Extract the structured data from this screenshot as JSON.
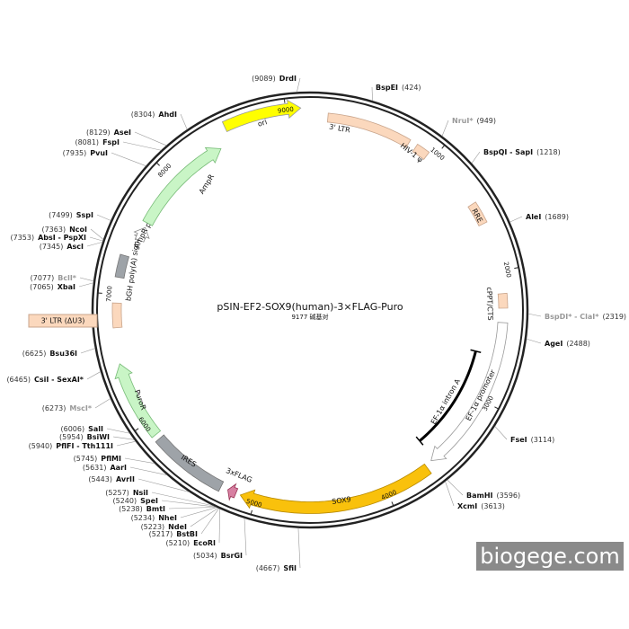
{
  "title": "pSIN-EF2-SOX9(human)-3×FLAG-Puro",
  "subtitle": "9177 碱基对",
  "ticks": [
    1000,
    2000,
    3000,
    4000,
    5000,
    6000,
    7000,
    8000,
    9000
  ],
  "features": [
    "ori",
    "3' LTR",
    "HIV-1 ψ",
    "RRE",
    "cPPT/CTS",
    "EF-1α promoter",
    "EF-1α intron A",
    "SOX9",
    "3xFLAG",
    "IRES",
    "PuroR",
    "3' LTR (ΔU3)",
    "bGH poly(A) signal",
    "AmpR promoter",
    "AmpR"
  ],
  "enzymes": [
    {
      "name": "DrdI",
      "position": "(9089)"
    },
    {
      "name": "BspEI",
      "position": "(424)"
    },
    {
      "name": "NruI*",
      "position": "(949)"
    },
    {
      "name": "BspQI - SapI",
      "position": "(1218)"
    },
    {
      "name": "AleI",
      "position": "(1689)"
    },
    {
      "name": "BspDI* - ClaI*",
      "position": "(2319)"
    },
    {
      "name": "AgeI",
      "position": "(2488)"
    },
    {
      "name": "FseI",
      "position": "(3114)"
    },
    {
      "name": "BamHI",
      "position": "(3596)"
    },
    {
      "name": "XcmI",
      "position": "(3613)"
    },
    {
      "name": "SfiI",
      "position": "(4667)"
    },
    {
      "name": "BsrGI",
      "position": "(5034)"
    },
    {
      "name": "EcoRI",
      "position": "(5210)"
    },
    {
      "name": "BstBI",
      "position": "(5217)"
    },
    {
      "name": "NdeI",
      "position": "(5223)"
    },
    {
      "name": "NheI",
      "position": "(5234)"
    },
    {
      "name": "BmtI",
      "position": "(5238)"
    },
    {
      "name": "SpeI",
      "position": "(5240)"
    },
    {
      "name": "NsiI",
      "position": "(5257)"
    },
    {
      "name": "AvrII",
      "position": "(5443)"
    },
    {
      "name": "AarI",
      "position": "(5631)"
    },
    {
      "name": "PflMI",
      "position": "(5745)"
    },
    {
      "name": "PflFI - Tth111I",
      "position": "(5940)"
    },
    {
      "name": "BsiWI",
      "position": "(5954)"
    },
    {
      "name": "SalI",
      "position": "(6006)"
    },
    {
      "name": "MscI*",
      "position": "(6273)"
    },
    {
      "name": "CsiI - SexAI*",
      "position": "(6465)"
    },
    {
      "name": "Bsu36I",
      "position": "(6625)"
    },
    {
      "name": "XbaI",
      "position": "(7065)"
    },
    {
      "name": "BclI*",
      "position": "(7077)"
    },
    {
      "name": "AscI",
      "position": "(7345)"
    },
    {
      "name": "AbsI - PspXI",
      "position": "(7353)"
    },
    {
      "name": "NcoI",
      "position": "(7363)"
    },
    {
      "name": "SspI",
      "position": "(7499)"
    },
    {
      "name": "PvuI",
      "position": "(7935)"
    },
    {
      "name": "FspI",
      "position": "(8081)"
    },
    {
      "name": "AseI",
      "position": "(8129)"
    },
    {
      "name": "AhdI",
      "position": "(8304)"
    }
  ],
  "watermark": "biogege.com"
}
